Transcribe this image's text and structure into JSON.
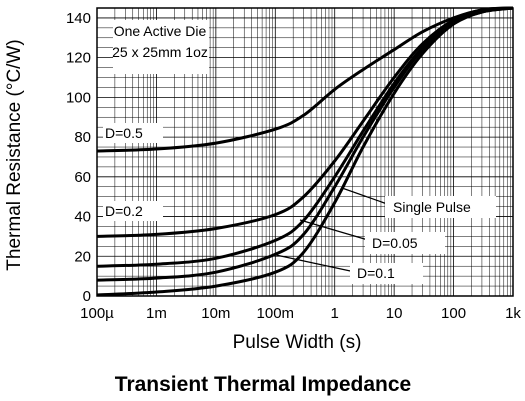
{
  "chart_data": {
    "type": "line",
    "title": "Transient Thermal Impedance",
    "xlabel": "Pulse Width (s)",
    "ylabel": "Thermal Resistance (°C/W)",
    "x_scale": "log",
    "xlim": [
      0.0001,
      1000
    ],
    "ylim": [
      0,
      145
    ],
    "grid": true,
    "x_ticks": [
      {
        "value": 0.0001,
        "label": "100µ"
      },
      {
        "value": 0.001,
        "label": "1m"
      },
      {
        "value": 0.01,
        "label": "10m"
      },
      {
        "value": 0.1,
        "label": "100m"
      },
      {
        "value": 1,
        "label": "1"
      },
      {
        "value": 10,
        "label": "10"
      },
      {
        "value": 100,
        "label": "100"
      },
      {
        "value": 1000,
        "label": "1k"
      }
    ],
    "y_ticks": [
      0,
      20,
      40,
      60,
      80,
      100,
      120,
      140
    ],
    "series": [
      {
        "name": "D=0.5",
        "x": [
          0.0001,
          0.001,
          0.01,
          0.1,
          0.3,
          1,
          3,
          10,
          30,
          100,
          300,
          1000
        ],
        "y": [
          73,
          74,
          77,
          84,
          91,
          104,
          114,
          124,
          133,
          140,
          144,
          145
        ]
      },
      {
        "name": "D=0.2",
        "x": [
          0.0001,
          0.001,
          0.01,
          0.1,
          0.3,
          1,
          3,
          10,
          30,
          100,
          300,
          1000
        ],
        "y": [
          30,
          31,
          34,
          41,
          50,
          68,
          88,
          110,
          127,
          139,
          144,
          145
        ]
      },
      {
        "name": "D=0.1",
        "x": [
          0.0001,
          0.001,
          0.01,
          0.1,
          0.3,
          1,
          3,
          10,
          30,
          100,
          300,
          1000
        ],
        "y": [
          15,
          16,
          19,
          28,
          38,
          60,
          83,
          107,
          125,
          138,
          144,
          145
        ]
      },
      {
        "name": "D=0.05",
        "x": [
          0.0001,
          0.001,
          0.01,
          0.1,
          0.3,
          1,
          3,
          10,
          30,
          100,
          300,
          1000
        ],
        "y": [
          8,
          9,
          12,
          21,
          31,
          55,
          80,
          105,
          124,
          137,
          143,
          145
        ]
      },
      {
        "name": "Single Pulse",
        "x": [
          0.0001,
          0.001,
          0.01,
          0.1,
          0.3,
          1,
          3,
          10,
          30,
          100,
          300,
          1000
        ],
        "y": [
          0.5,
          2,
          5,
          12,
          22,
          47,
          75,
          102,
          122,
          137,
          143,
          145
        ]
      }
    ],
    "annotations": [
      {
        "text": "One Active Die"
      },
      {
        "text": "25 x 25mm 1oz"
      },
      {
        "text": "D=0.5"
      },
      {
        "text": "D=0.2"
      },
      {
        "text": "Single Pulse"
      },
      {
        "text": "D=0.05"
      },
      {
        "text": "D=0.1"
      }
    ]
  }
}
